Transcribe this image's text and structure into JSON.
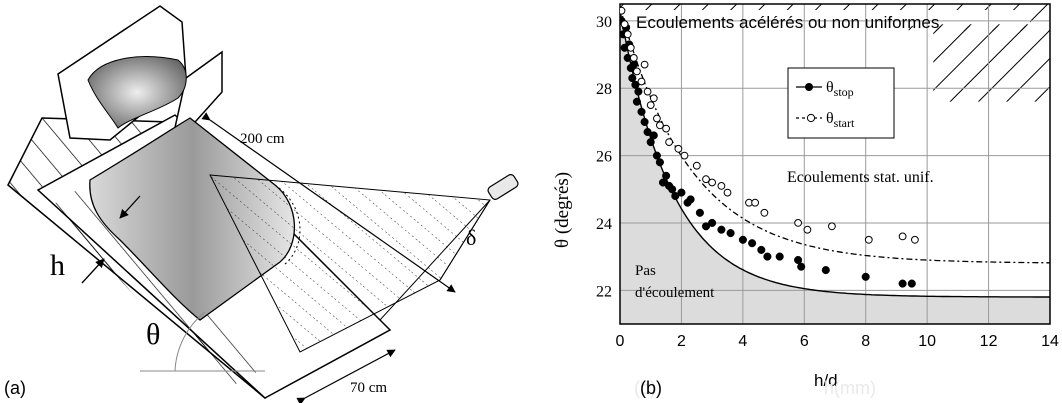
{
  "panel_a": {
    "label": "(a)",
    "length_label": "200 cm",
    "width_label": "70 cm",
    "h_label": "h",
    "theta_label": "θ",
    "delta_label": "δ"
  },
  "panel_b": {
    "label": "(b)",
    "ghost_text_left": "(b)",
    "ghost_text_right": "h(mm)"
  },
  "chart_data": {
    "type": "scatter",
    "xlabel": "h/d",
    "ylabel": "θ (degrés)",
    "xlim": [
      0,
      14
    ],
    "ylim": [
      21,
      30.5
    ],
    "x_ticks": [
      "0",
      "2",
      "4",
      "6",
      "8",
      "10",
      "12",
      "14"
    ],
    "y_ticks": [
      "22",
      "24",
      "26",
      "28",
      "30"
    ],
    "grid": true,
    "legend_position": "upper-middle",
    "legend": [
      {
        "label": "θstop",
        "base": "θ",
        "sub": "stop",
        "marker": "filled-circle",
        "line": "solid"
      },
      {
        "label": "θstart",
        "base": "θ",
        "sub": "start",
        "marker": "open-circle",
        "line": "dashed"
      }
    ],
    "region_labels": {
      "top": "Ecoulements acélérés ou non uniformes",
      "middle": "Ecoulements stat. unif.",
      "bottom_line1": "Pas",
      "bottom_line2": "d'écoulement"
    },
    "series": [
      {
        "name": "θstop",
        "marker": "filled",
        "points": [
          [
            0.05,
            30.0
          ],
          [
            0.1,
            29.6
          ],
          [
            0.15,
            29.2
          ],
          [
            0.2,
            29.8
          ],
          [
            0.25,
            28.9
          ],
          [
            0.3,
            29.3
          ],
          [
            0.35,
            28.6
          ],
          [
            0.4,
            28.3
          ],
          [
            0.45,
            28.7
          ],
          [
            0.5,
            28.1
          ],
          [
            0.55,
            27.6
          ],
          [
            0.6,
            27.9
          ],
          [
            0.7,
            27.3
          ],
          [
            0.8,
            27.0
          ],
          [
            0.9,
            26.7
          ],
          [
            1.0,
            26.4
          ],
          [
            1.1,
            26.6
          ],
          [
            1.2,
            26.0
          ],
          [
            1.3,
            25.8
          ],
          [
            1.4,
            25.2
          ],
          [
            1.5,
            25.4
          ],
          [
            1.6,
            25.1
          ],
          [
            1.7,
            25.0
          ],
          [
            1.8,
            24.8
          ],
          [
            2.0,
            24.9
          ],
          [
            2.2,
            24.6
          ],
          [
            2.3,
            24.7
          ],
          [
            2.6,
            24.3
          ],
          [
            2.8,
            23.9
          ],
          [
            3.0,
            24.0
          ],
          [
            3.3,
            23.8
          ],
          [
            3.6,
            23.7
          ],
          [
            4.0,
            23.5
          ],
          [
            4.3,
            23.4
          ],
          [
            4.6,
            23.2
          ],
          [
            4.8,
            23.0
          ],
          [
            5.2,
            23.0
          ],
          [
            5.8,
            22.9
          ],
          [
            5.9,
            22.7
          ],
          [
            6.7,
            22.6
          ],
          [
            8.0,
            22.4
          ],
          [
            9.2,
            22.2
          ],
          [
            9.5,
            22.2
          ]
        ]
      },
      {
        "name": "θstart",
        "marker": "open",
        "points": [
          [
            0.05,
            30.3
          ],
          [
            0.15,
            29.9
          ],
          [
            0.25,
            29.6
          ],
          [
            0.35,
            29.2
          ],
          [
            0.45,
            28.9
          ],
          [
            0.55,
            28.5
          ],
          [
            0.7,
            28.2
          ],
          [
            0.8,
            28.7
          ],
          [
            0.9,
            27.9
          ],
          [
            1.0,
            27.5
          ],
          [
            1.1,
            27.7
          ],
          [
            1.2,
            27.1
          ],
          [
            1.3,
            26.9
          ],
          [
            1.5,
            26.8
          ],
          [
            1.6,
            26.4
          ],
          [
            1.9,
            26.2
          ],
          [
            2.1,
            26.0
          ],
          [
            2.5,
            25.7
          ],
          [
            2.8,
            25.3
          ],
          [
            3.0,
            25.2
          ],
          [
            3.3,
            25.1
          ],
          [
            3.5,
            24.9
          ],
          [
            4.2,
            24.6
          ],
          [
            4.4,
            24.6
          ],
          [
            4.7,
            24.3
          ],
          [
            5.8,
            24.0
          ],
          [
            6.1,
            23.8
          ],
          [
            6.9,
            23.9
          ],
          [
            8.1,
            23.5
          ],
          [
            9.2,
            23.6
          ],
          [
            9.6,
            23.5
          ]
        ]
      }
    ]
  }
}
